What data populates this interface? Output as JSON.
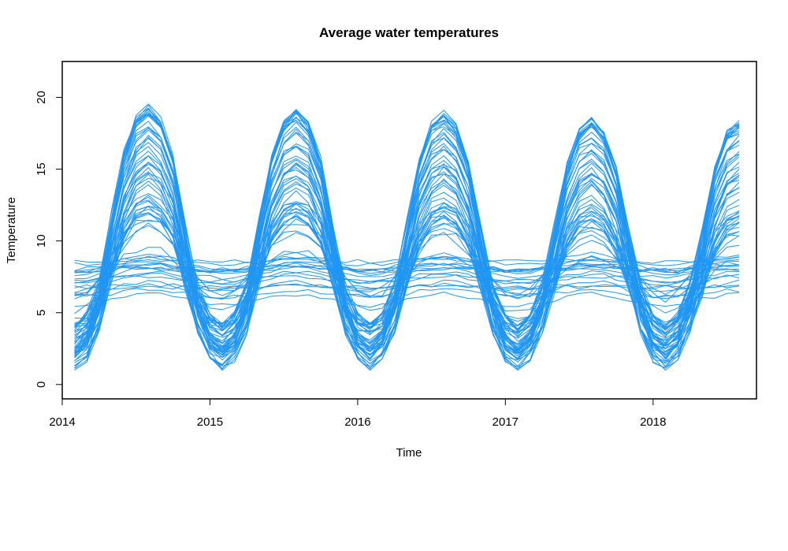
{
  "chart_data": {
    "type": "line",
    "title": "Average water temperatures",
    "xlabel": "Time",
    "ylabel": "Temperature",
    "xlim": [
      2014.0,
      2018.7
    ],
    "ylim": [
      -1,
      22.5
    ],
    "x_ticks": [
      2014,
      2015,
      2016,
      2017,
      2018
    ],
    "x_tick_labels": [
      "2014",
      "2015",
      "2016",
      "2017",
      "2018"
    ],
    "y_ticks": [
      0,
      5,
      10,
      15,
      20
    ],
    "y_tick_labels": [
      "0",
      "5",
      "10",
      "15",
      "20"
    ],
    "grid": false,
    "legend": "none",
    "series_color": "#2196f3",
    "months_per_series": 55,
    "start": "2014-02",
    "end": "2018-07",
    "series_groups": [
      {
        "group": "seasonal-deep-cycle",
        "count": 45,
        "summer_peak_range": [
          12.0,
          19.7
        ],
        "winter_min_range": [
          1.0,
          4.5
        ],
        "mean_level": 7.2
      },
      {
        "group": "seasonal-moderate-cycle",
        "count": 8,
        "summer_peak_range": [
          9.0,
          13.5
        ],
        "winter_min_range": [
          3.5,
          6.5
        ],
        "mean_level": 7.5
      },
      {
        "group": "near-constant",
        "count": 18,
        "level_range": [
          5.9,
          8.8
        ],
        "amplitude_range": [
          0.0,
          0.6
        ]
      }
    ]
  },
  "colors": {
    "line": "#2196f3",
    "axis": "#000000",
    "background": "#ffffff"
  }
}
